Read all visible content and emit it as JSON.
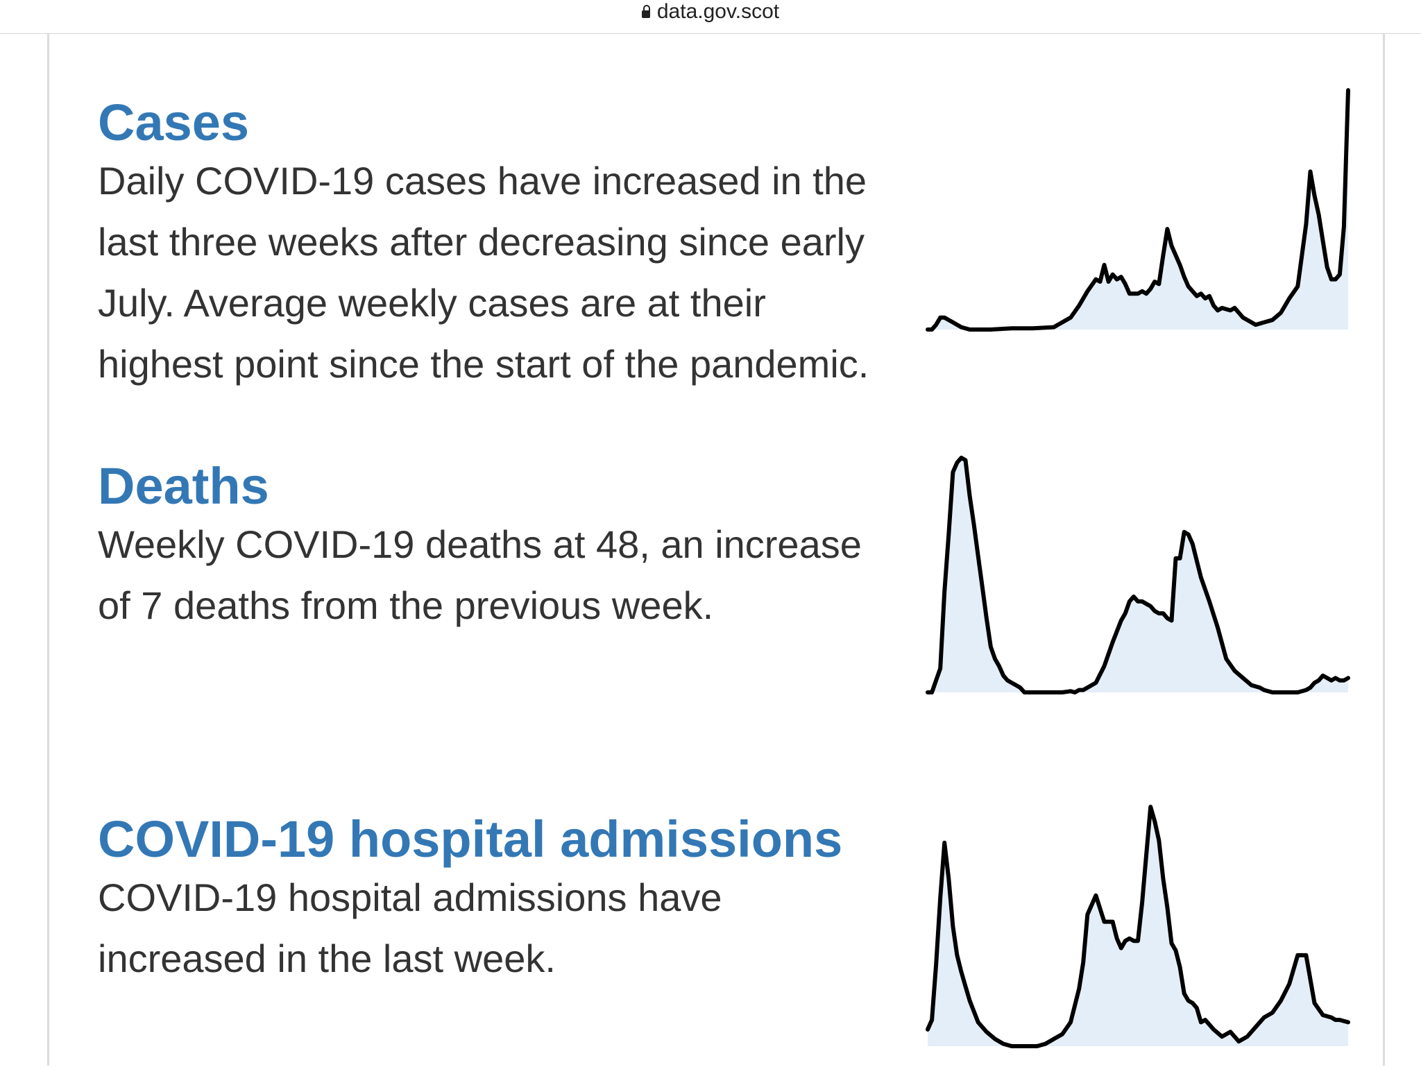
{
  "browser": {
    "url": "data.gov.scot"
  },
  "sections": [
    {
      "title": "Cases",
      "description": "Daily COVID-19 cases have increased in the last three weeks after decreasing since early July. Average weekly cases are at their highest point since the start of the pandemic."
    },
    {
      "title": "Deaths",
      "description": "Weekly COVID-19 deaths at 48, an increase of 7 deaths from the previous week."
    },
    {
      "title": "COVID-19 hospital admissions",
      "description": "COVID-19 hospital admissions have increased in the last week."
    }
  ],
  "colors": {
    "heading": "#3378b5",
    "body_text": "#333333",
    "line": "#000000",
    "area_fill": "#e4eef8"
  },
  "chart_data": [
    {
      "type": "area",
      "ylim": [
        0,
        100
      ],
      "grid": false,
      "x": [
        0,
        1,
        2,
        3,
        4,
        5,
        6,
        8,
        10,
        15,
        20,
        25,
        30,
        32,
        34,
        36,
        38,
        40,
        41,
        42,
        43,
        44,
        45,
        46,
        47,
        48,
        50,
        51,
        52,
        53,
        54,
        55,
        56,
        57,
        58,
        60,
        61,
        62,
        63,
        64,
        65,
        66,
        67,
        68,
        69,
        70,
        72,
        73,
        75,
        77,
        78,
        80,
        82,
        84,
        86,
        88,
        90,
        91,
        92,
        93,
        94,
        95,
        96,
        97,
        98,
        99,
        100
      ],
      "y": [
        0,
        0,
        2,
        5,
        5,
        4,
        3,
        1,
        0,
        0,
        0.5,
        0.5,
        1,
        3,
        5,
        10,
        16,
        21,
        20,
        27,
        20,
        23,
        21,
        22,
        19,
        15,
        15,
        16,
        15,
        17,
        20,
        19,
        31,
        42,
        35,
        27,
        22,
        18,
        16,
        14,
        15,
        13,
        14,
        10,
        8,
        9,
        8,
        9,
        5,
        3,
        2,
        3,
        4,
        7,
        13,
        18,
        44,
        66,
        56,
        48,
        37,
        26,
        21,
        21,
        23,
        43,
        100
      ]
    },
    {
      "type": "area",
      "ylim": [
        0,
        100
      ],
      "grid": false,
      "x": [
        0,
        1,
        2,
        3,
        4,
        5,
        6,
        7,
        8,
        9,
        10,
        11,
        12,
        13,
        14,
        15,
        16,
        17,
        18,
        19,
        20,
        21,
        22,
        23,
        24,
        25,
        26,
        28,
        30,
        32,
        34,
        35,
        36,
        37,
        38,
        40,
        42,
        44,
        46,
        47,
        48,
        49,
        50,
        51,
        52,
        53,
        54,
        55,
        56,
        57,
        58,
        59,
        60,
        61,
        62,
        63,
        64,
        65,
        67,
        69,
        71,
        73,
        75,
        77,
        79,
        80,
        82,
        84,
        86,
        88,
        90,
        91,
        92,
        93,
        94,
        95,
        96,
        97,
        98,
        99,
        100
      ],
      "y": [
        0,
        0,
        5,
        10,
        42,
        66,
        92,
        96,
        98,
        97,
        82,
        70,
        57,
        44,
        31,
        19,
        14,
        11,
        7,
        5,
        4,
        3,
        2,
        0,
        0,
        0,
        0,
        0,
        0,
        0,
        0.5,
        0,
        1,
        1,
        2,
        4,
        11,
        21,
        30,
        33,
        38,
        40,
        38,
        38,
        37,
        36,
        34,
        33,
        33,
        31,
        30,
        56,
        56,
        67,
        66,
        62,
        55,
        48,
        38,
        27,
        14,
        9,
        6,
        3,
        2,
        1,
        0,
        0,
        0,
        0,
        1,
        2,
        4,
        5,
        7,
        6,
        5,
        6,
        5,
        5,
        6
      ]
    },
    {
      "type": "area",
      "ylim": [
        0,
        100
      ],
      "grid": false,
      "x": [
        0,
        1,
        2,
        3,
        4,
        5,
        6,
        7,
        8,
        9,
        10,
        12,
        14,
        16,
        18,
        20,
        22,
        24,
        26,
        28,
        30,
        32,
        34,
        36,
        37,
        38,
        40,
        42,
        44,
        45,
        46,
        47,
        48,
        49,
        50,
        51,
        52,
        53,
        54,
        55,
        56,
        57,
        58,
        59,
        60,
        61,
        62,
        63,
        64,
        65,
        66,
        67,
        68,
        70,
        72,
        74,
        76,
        78,
        80,
        82,
        84,
        86,
        88,
        90,
        92,
        94,
        96,
        97,
        98,
        100
      ],
      "y": [
        7,
        11,
        34,
        62,
        85,
        70,
        50,
        38,
        31,
        25,
        19,
        10,
        6,
        3,
        1,
        0,
        0,
        0,
        0,
        1,
        3,
        5,
        10,
        24,
        35,
        55,
        63,
        52,
        52,
        45,
        41,
        44,
        45,
        44,
        44,
        60,
        80,
        100,
        94,
        86,
        70,
        58,
        43,
        40,
        33,
        22,
        19,
        18,
        16,
        10,
        11,
        9,
        7,
        4,
        6,
        2,
        4,
        8,
        12,
        14,
        19,
        26,
        38,
        38,
        18,
        13,
        12,
        11,
        11,
        10
      ]
    }
  ]
}
